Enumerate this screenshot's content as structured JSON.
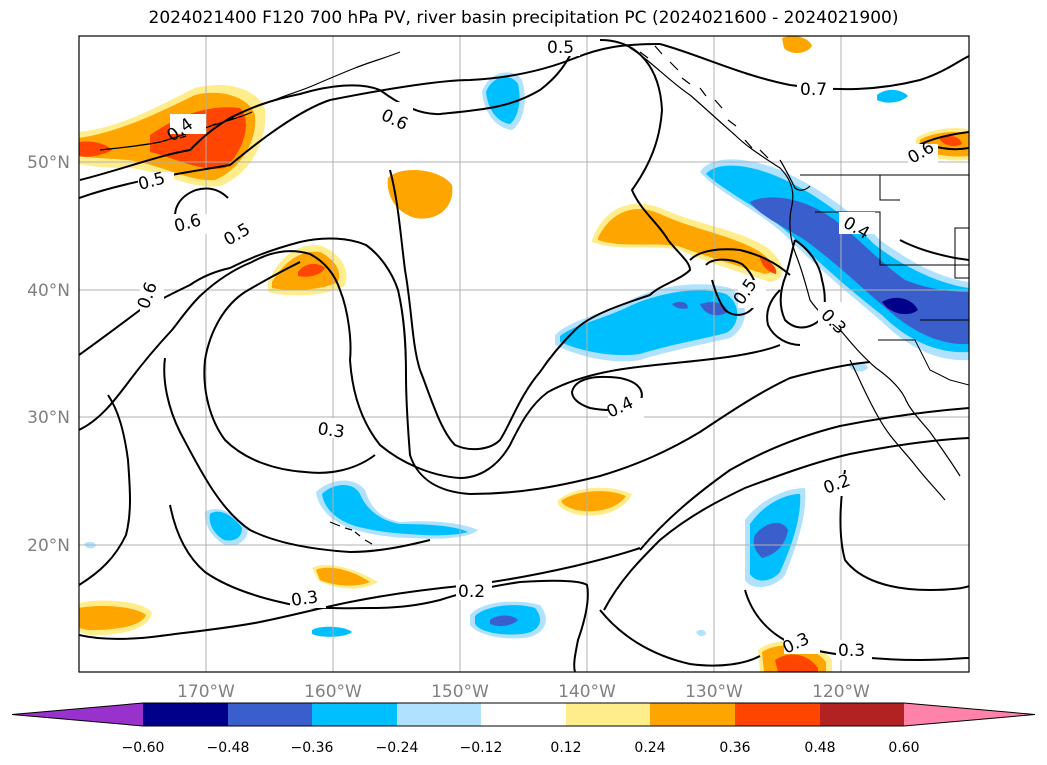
{
  "title": "2024021400 F120 700 hPa PV, river basin precipitation PC (2024021600 - 2024021900)",
  "map": {
    "lon_ticks": [
      "170°W",
      "160°W",
      "150°W",
      "140°W",
      "130°W",
      "120°W"
    ],
    "lat_ticks": [
      "50°N",
      "40°N",
      "30°N",
      "20°N"
    ],
    "contour_labels": [
      "0.5",
      "0.7",
      "0.6",
      "0.4",
      "0.5",
      "0.6",
      "0.5",
      "0.6",
      "0.4",
      "0.5",
      "0.3",
      "0.3",
      "0.4",
      "0.2",
      "0.3",
      "0.2",
      "0.3",
      "0.3",
      "0.6"
    ]
  },
  "colorbar": {
    "labels": [
      "−0.60",
      "−0.48",
      "−0.36",
      "−0.24",
      "−0.12",
      "0.12",
      "0.24",
      "0.36",
      "0.48",
      "0.60"
    ],
    "colors": [
      "#9932cc",
      "#00008b",
      "#3a5fcd",
      "#00bfff",
      "#b0e2ff",
      "#ffffff",
      "#ffec8b",
      "#ffa500",
      "#ff4500",
      "#b22222",
      "#ff82ab"
    ]
  }
}
